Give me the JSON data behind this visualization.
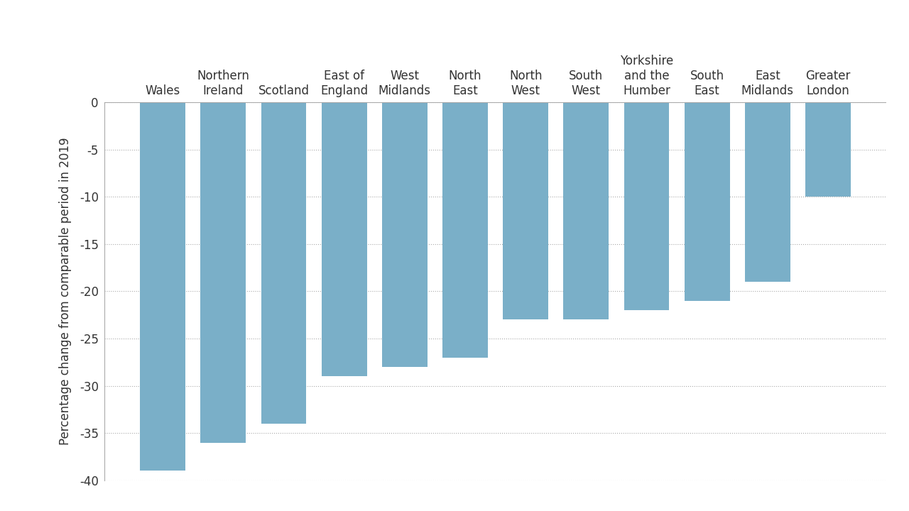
{
  "categories": [
    "Wales",
    "Northern\nIreland",
    "Scotland",
    "East of\nEngland",
    "West\nMidlands",
    "North\nEast",
    "North\nWest",
    "South\nWest",
    "Yorkshire\nand the\nHumber",
    "South\nEast",
    "East\nMidlands",
    "Greater\nLondon"
  ],
  "values": [
    -39,
    -36,
    -34,
    -29,
    -28,
    -27,
    -23,
    -23,
    -22,
    -21,
    -19,
    -10
  ],
  "bar_color": "#7aafc8",
  "ylabel": "Percentage change from comparable period in 2019",
  "ylim": [
    -40,
    0
  ],
  "yticks": [
    0,
    -5,
    -10,
    -15,
    -20,
    -25,
    -30,
    -35,
    -40
  ],
  "background_color": "#ffffff",
  "bar_width": 0.75,
  "grid_color": "#aaaaaa",
  "tick_label_fontsize": 12,
  "ylabel_fontsize": 12,
  "spine_color": "#aaaaaa"
}
